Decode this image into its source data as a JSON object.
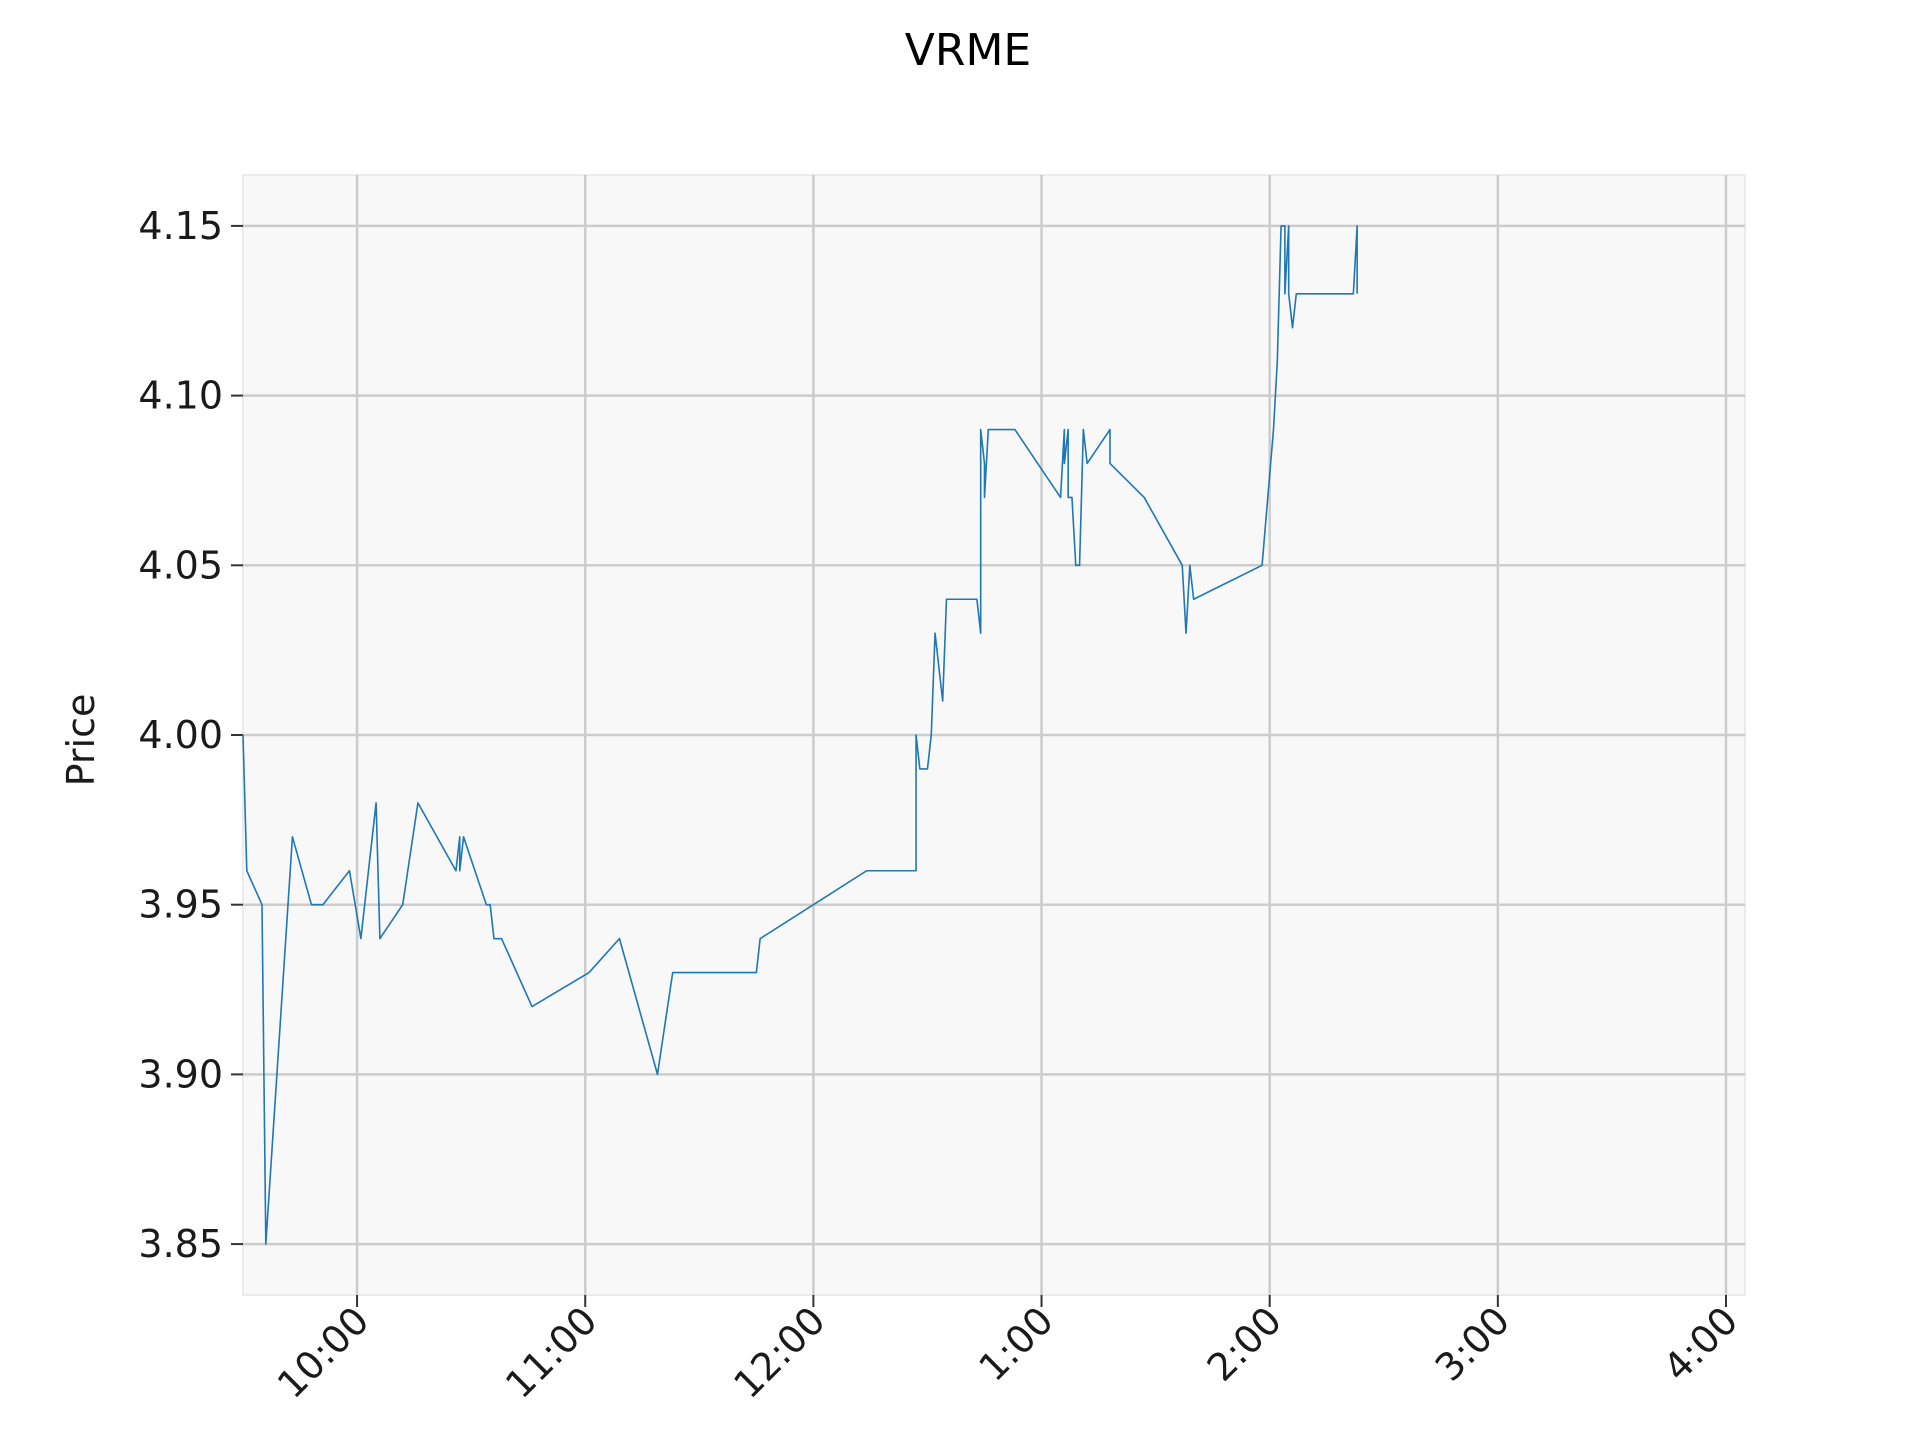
{
  "chart_data": {
    "type": "line",
    "title": "VRME",
    "xlabel": "",
    "ylabel": "Price",
    "grid": true,
    "background_color": "#f8f8f8",
    "line_color": "#1f77b4",
    "grid_color": "#cccccc",
    "xlim": [
      "9:30",
      "4:05"
    ],
    "ylim": [
      3.835,
      4.165
    ],
    "x_ticks": [
      "10:00",
      "11:00",
      "12:00",
      "1:00",
      "2:00",
      "3:00",
      "4:00"
    ],
    "y_ticks": [
      "3.85",
      "3.90",
      "3.95",
      "4.00",
      "4.05",
      "4.10",
      "4.15"
    ],
    "y_tick_values": [
      3.85,
      3.9,
      3.95,
      4.0,
      4.05,
      4.1,
      4.15
    ],
    "series": [
      {
        "x": [
          "9:30",
          "9:31",
          "9:35",
          "9:36",
          "9:43",
          "9:48",
          "9:51",
          "9:58",
          "10:01",
          "10:05",
          "10:06",
          "10:12",
          "10:16",
          "10:26",
          "10:27",
          "10:27",
          "10:28",
          "10:34",
          "10:35",
          "10:36",
          "10:38",
          "10:46",
          "11:01",
          "11:09",
          "11:19",
          "11:23",
          "11:45",
          "11:46",
          "12:14",
          "12:27",
          "12:27",
          "12:27",
          "12:27",
          "12:28",
          "12:30",
          "12:31",
          "12:32",
          "12:34",
          "12:35",
          "12:36",
          "12:43",
          "12:44",
          "12:44",
          "12:45",
          "12:45",
          "12:46",
          "12:49",
          "12:53",
          "13:05",
          "13:06",
          "13:06",
          "13:07",
          "13:07",
          "13:08",
          "13:09",
          "13:10",
          "13:11",
          "13:12",
          "13:18",
          "13:18",
          "13:27",
          "13:37",
          "13:38",
          "13:39",
          "13:40",
          "13:58",
          "14:01",
          "14:02",
          "14:03",
          "14:04",
          "14:04",
          "14:05",
          "14:05",
          "14:06",
          "14:07",
          "14:08",
          "14:22",
          "14:23",
          "14:23"
        ],
        "y": [
          4.0,
          3.96,
          3.95,
          3.85,
          3.97,
          3.95,
          3.95,
          3.96,
          3.94,
          3.98,
          3.94,
          3.95,
          3.98,
          3.96,
          3.97,
          3.96,
          3.97,
          3.95,
          3.95,
          3.94,
          3.94,
          3.92,
          3.93,
          3.94,
          3.9,
          3.93,
          3.93,
          3.94,
          3.96,
          3.96,
          3.98,
          3.97,
          4.0,
          3.99,
          3.99,
          4.0,
          4.03,
          4.01,
          4.04,
          4.04,
          4.04,
          4.03,
          4.09,
          4.08,
          4.07,
          4.09,
          4.09,
          4.09,
          4.07,
          4.09,
          4.08,
          4.09,
          4.07,
          4.07,
          4.05,
          4.05,
          4.09,
          4.08,
          4.09,
          4.08,
          4.07,
          4.05,
          4.03,
          4.05,
          4.04,
          4.05,
          4.09,
          4.11,
          4.15,
          4.15,
          4.13,
          4.15,
          4.13,
          4.12,
          4.13,
          4.13,
          4.13,
          4.15,
          4.13
        ]
      }
    ]
  }
}
